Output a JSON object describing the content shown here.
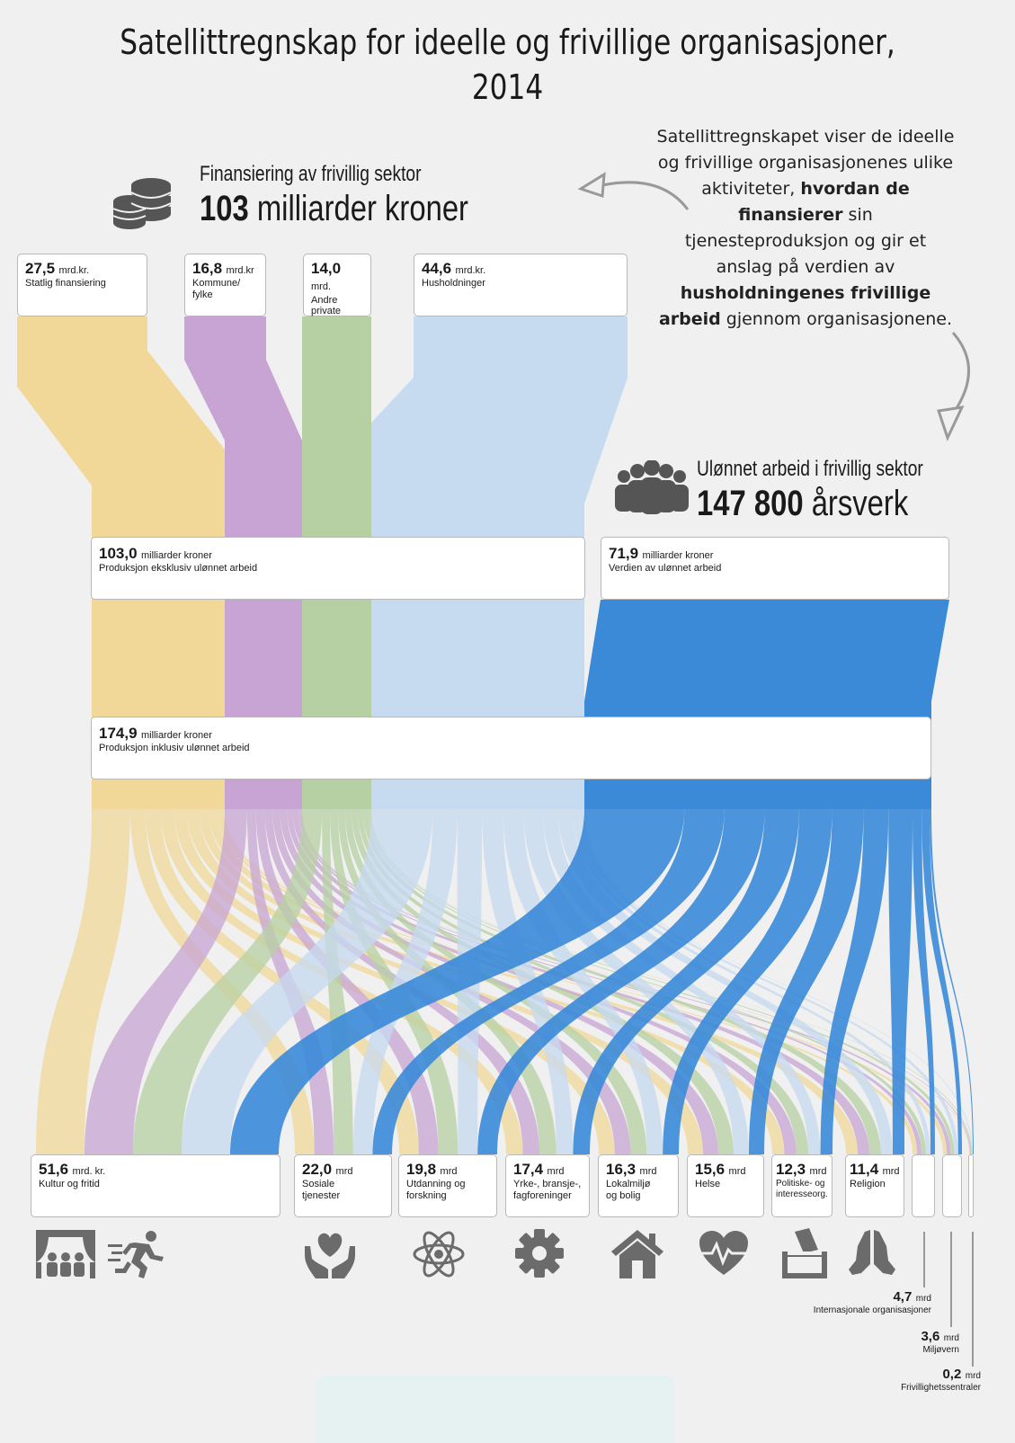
{
  "title_line1": "Satellittregnskap for ideelle og frivillige organisasjoner,",
  "title_line2": "2014",
  "intro": {
    "p1": "Satellittregnskapet viser de ideelle og frivillige organisasjonenes ulike aktiviteter,",
    "b1": "hvordan de finansierer",
    "p2": "sin tjenesteproduksjon og gir et anslag på verdien av",
    "b2": "husholdningenes frivillige arbeid",
    "p3": "gjennom organisasjonene."
  },
  "financing": {
    "heading": "Finansiering av frivillig sektor",
    "total_value": "103",
    "total_unit": "milliarder kroner",
    "icon": "coin-stack-icon"
  },
  "volunteer": {
    "heading": "Ulønnet arbeid i frivillig sektor",
    "total_value": "147 800",
    "total_unit": "årsverk",
    "icon": "people-group-icon"
  },
  "sources": [
    {
      "value": "27,5",
      "unit": "mrd.kr.",
      "label": "Statlig finansiering",
      "color": "#f2d898"
    },
    {
      "value": "16,8",
      "unit": "mrd.kr",
      "label": "Kommune/ fylke",
      "color": "#c7a4d3"
    },
    {
      "value": "14,0",
      "unit": "mrd.",
      "label": "Andre private",
      "color": "#b7d0a3"
    },
    {
      "value": "44,6",
      "unit": "mrd.kr.",
      "label": "Husholdninger",
      "color": "#c6daf0"
    }
  ],
  "unpaid_color": "#3a8ad8",
  "production_excl": {
    "value": "103,0",
    "unit": "milliarder kroner",
    "label": "Produksjon eksklusiv ulønnet arbeid"
  },
  "unpaid_value": {
    "value": "71,9",
    "unit": "milliarder kroner",
    "label": "Verdien av ulønnet arbeid"
  },
  "production_incl": {
    "value": "174,9",
    "unit": "milliarder kroner",
    "label": "Produksjon inklusiv ulønnet arbeid"
  },
  "categories": [
    {
      "value": "51,6",
      "unit": "mrd. kr.",
      "label": "Kultur og fritid",
      "icon": "theater-icon",
      "icon2": "running-person-icon"
    },
    {
      "value": "22,0",
      "unit": "mrd",
      "label": "Sosiale tjenester",
      "icon": "heart-hands-icon"
    },
    {
      "value": "19,8",
      "unit": "mrd",
      "label": "Utdanning og forskning",
      "icon": "atom-icon"
    },
    {
      "value": "17,4",
      "unit": "mrd",
      "label": "Yrke-, bransje-, fagforeninger",
      "icon": "gear-icon"
    },
    {
      "value": "16,3",
      "unit": "mrd",
      "label": "Lokalmiljø og bolig",
      "icon": "house-icon"
    },
    {
      "value": "15,6",
      "unit": "mrd",
      "label": "Helse",
      "icon": "heartbeat-icon"
    },
    {
      "value": "12,3",
      "unit": "mrd",
      "label": "Politiske- og interesseorg.",
      "icon": "ballot-box-icon"
    },
    {
      "value": "11,4",
      "unit": "mrd",
      "label": "Religion",
      "icon": "praying-hands-icon"
    }
  ],
  "small_categories": [
    {
      "value": "4,7",
      "unit": "mrd",
      "label": "Internasjonale organisasjoner"
    },
    {
      "value": "3,6",
      "unit": "mrd",
      "label": "Miljøvern"
    },
    {
      "value": "0,2",
      "unit": "mrd",
      "label": "Frivillighetssentraler"
    }
  ]
}
